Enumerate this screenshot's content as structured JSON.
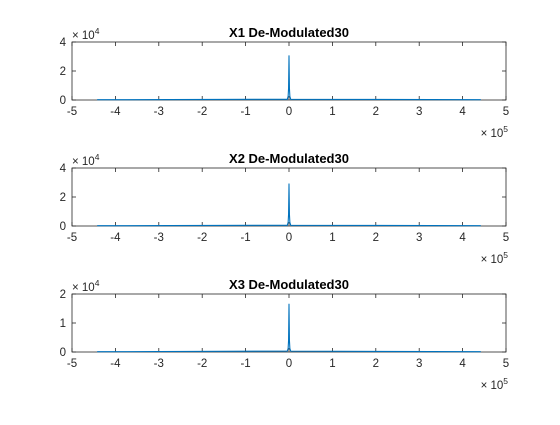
{
  "chart_data": [
    {
      "type": "line",
      "title": "X1 De-Modulated30",
      "xlabel": "",
      "ylabel": "",
      "xlim": [
        -5,
        5
      ],
      "ylim": [
        0,
        4
      ],
      "x_exponent_base": "× 10",
      "x_exponent_power": "5",
      "y_exponent_base": "× 10",
      "y_exponent_power": "4",
      "xticks": [
        "-5",
        "-4",
        "-3",
        "-2",
        "-1",
        "0",
        "1",
        "2",
        "3",
        "4",
        "5"
      ],
      "yticks": [
        "0",
        "2",
        "4"
      ],
      "series": [
        {
          "color": "#0072BD",
          "x": [
            -4.42,
            -0.04,
            -0.02,
            -0.01,
            0.0,
            0.01,
            0.02,
            0.04,
            4.42
          ],
          "y": [
            0.02,
            0.05,
            0.25,
            0.8,
            3.05,
            0.8,
            0.25,
            0.05,
            0.02
          ]
        }
      ]
    },
    {
      "type": "line",
      "title": "X2 De-Modulated30",
      "xlabel": "",
      "ylabel": "",
      "xlim": [
        -5,
        5
      ],
      "ylim": [
        0,
        4
      ],
      "x_exponent_base": "× 10",
      "x_exponent_power": "5",
      "y_exponent_base": "× 10",
      "y_exponent_power": "4",
      "xticks": [
        "-5",
        "-4",
        "-3",
        "-2",
        "-1",
        "0",
        "1",
        "2",
        "3",
        "4",
        "5"
      ],
      "yticks": [
        "0",
        "2",
        "4"
      ],
      "series": [
        {
          "color": "#0072BD",
          "x": [
            -4.42,
            -0.04,
            -0.02,
            -0.01,
            0.0,
            0.01,
            0.02,
            0.04,
            4.42
          ],
          "y": [
            0.02,
            0.05,
            0.25,
            0.8,
            2.9,
            0.8,
            0.25,
            0.05,
            0.02
          ]
        }
      ]
    },
    {
      "type": "line",
      "title": "X3 De-Modulated30",
      "xlabel": "",
      "ylabel": "",
      "xlim": [
        -5,
        5
      ],
      "ylim": [
        0,
        2
      ],
      "x_exponent_base": "× 10",
      "x_exponent_power": "5",
      "y_exponent_base": "× 10",
      "y_exponent_power": "4",
      "xticks": [
        "-5",
        "-4",
        "-3",
        "-2",
        "-1",
        "0",
        "1",
        "2",
        "3",
        "4",
        "5"
      ],
      "yticks": [
        "0",
        "1",
        "2"
      ],
      "series": [
        {
          "color": "#0072BD",
          "x": [
            -4.42,
            -0.04,
            -0.02,
            -0.01,
            0.0,
            0.01,
            0.02,
            0.04,
            4.42
          ],
          "y": [
            0.01,
            0.03,
            0.12,
            0.4,
            1.65,
            0.4,
            0.12,
            0.03,
            0.01
          ]
        }
      ]
    }
  ]
}
